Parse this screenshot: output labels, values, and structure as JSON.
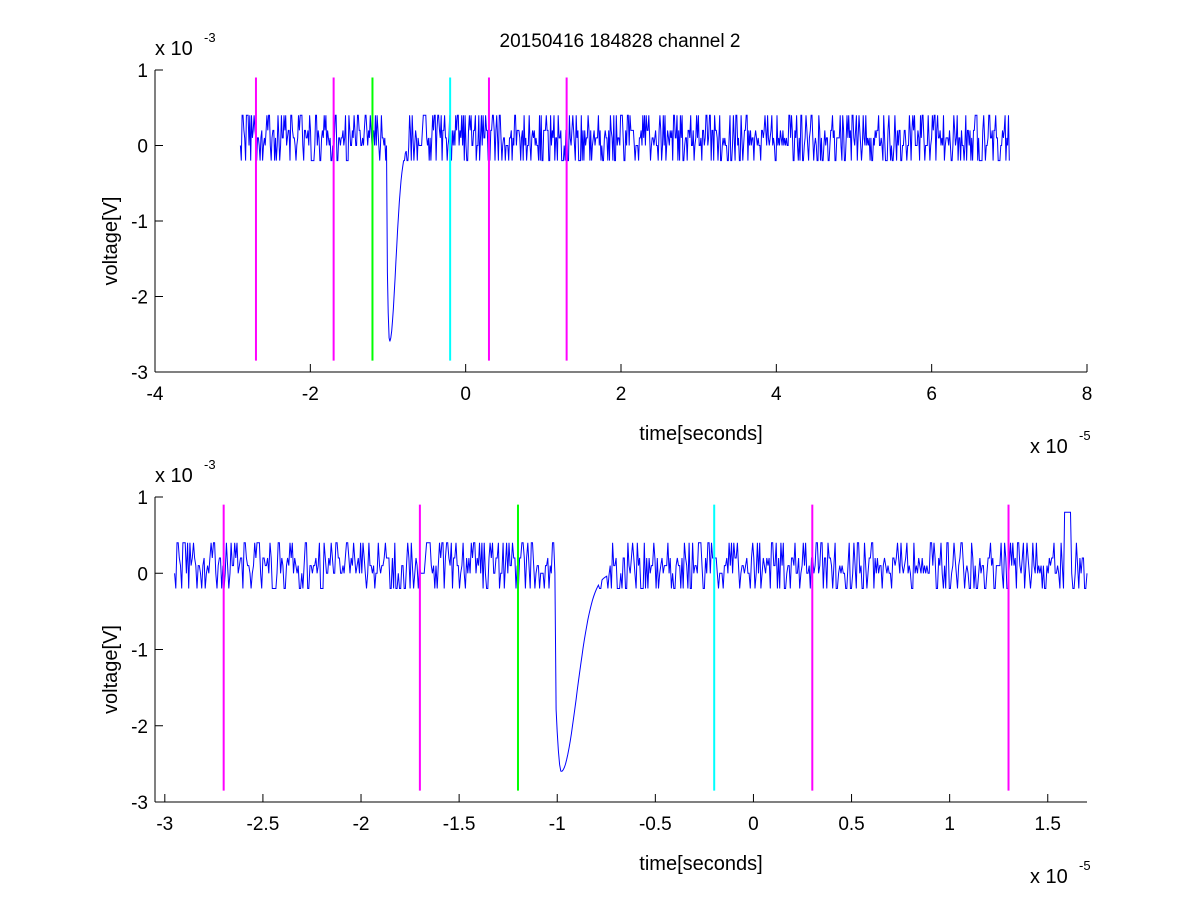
{
  "title": "20150416 184828 channel 2",
  "chart_data": [
    {
      "type": "line",
      "title": "20150416 184828 channel 2",
      "xlabel": "time[seconds]",
      "ylabel": "voltage[V]",
      "x_exponent_label": "x 10",
      "x_exponent": "-5",
      "y_exponent_label": "x 10",
      "y_exponent": "-3",
      "x_scale": 1e-05,
      "y_scale": 0.001,
      "xlim": [
        -4,
        8
      ],
      "ylim": [
        -3,
        1
      ],
      "xticks": [
        -4,
        -2,
        0,
        2,
        4,
        6,
        8
      ],
      "xtick_labels": [
        "-4",
        "-2",
        "0",
        "2",
        "4",
        "6",
        "8"
      ],
      "yticks": [
        -3,
        -2,
        -1,
        0,
        1
      ],
      "ytick_labels": [
        "-3",
        "-2",
        "-1",
        "0",
        "1"
      ],
      "grid": false,
      "series": [
        {
          "color": "#0000ff",
          "x_start": -2.9,
          "x_end": 7.0,
          "baseline": 0.1,
          "noise_levels": [
            0,
            0.2,
            0.4,
            -0.2,
            0.1
          ],
          "spike": {
            "x": -0.98,
            "min": -2.6
          }
        }
      ],
      "vertical_markers": [
        {
          "x": -2.7,
          "color": "#ff00ff",
          "y_range": [
            -2.85,
            0.9
          ]
        },
        {
          "x": -1.7,
          "color": "#ff00ff",
          "y_range": [
            -2.85,
            0.9
          ]
        },
        {
          "x": -1.2,
          "color": "#00ff00",
          "y_range": [
            -2.85,
            0.9
          ]
        },
        {
          "x": -0.2,
          "color": "#00ffff",
          "y_range": [
            -2.85,
            0.9
          ]
        },
        {
          "x": 0.3,
          "color": "#ff00ff",
          "y_range": [
            -2.85,
            0.9
          ]
        },
        {
          "x": 1.3,
          "color": "#ff00ff",
          "y_range": [
            -2.85,
            0.9
          ]
        }
      ]
    },
    {
      "type": "line",
      "xlabel": "time[seconds]",
      "ylabel": "voltage[V]",
      "x_exponent_label": "x 10",
      "x_exponent": "-5",
      "y_exponent_label": "x 10",
      "y_exponent": "-3",
      "x_scale": 1e-05,
      "y_scale": 0.001,
      "xlim": [
        -3.05,
        1.7
      ],
      "ylim": [
        -3,
        1
      ],
      "xticks": [
        -3,
        -2.5,
        -2,
        -1.5,
        -1,
        -0.5,
        0,
        0.5,
        1,
        1.5
      ],
      "xtick_labels": [
        "-3",
        "-2.5",
        "-2",
        "-1.5",
        "-1",
        "-0.5",
        "0",
        "0.5",
        "1",
        "1.5"
      ],
      "yticks": [
        -3,
        -2,
        -1,
        0,
        1
      ],
      "ytick_labels": [
        "-3",
        "-2",
        "-1",
        "0",
        "1"
      ],
      "grid": false,
      "series": [
        {
          "color": "#0000ff",
          "x_start": -2.95,
          "x_end": 1.7,
          "baseline": 0.1,
          "noise_levels": [
            0,
            0.2,
            0.4,
            -0.2,
            0.1
          ],
          "spike": {
            "x": -0.98,
            "min": -2.6
          },
          "late_peak": {
            "x": 1.6,
            "value": 0.8
          }
        }
      ],
      "vertical_markers": [
        {
          "x": -2.7,
          "color": "#ff00ff",
          "y_range": [
            -2.85,
            0.9
          ]
        },
        {
          "x": -1.7,
          "color": "#ff00ff",
          "y_range": [
            -2.85,
            0.9
          ]
        },
        {
          "x": -1.2,
          "color": "#00ff00",
          "y_range": [
            -2.85,
            0.9
          ]
        },
        {
          "x": -0.2,
          "color": "#00ffff",
          "y_range": [
            -2.85,
            0.9
          ]
        },
        {
          "x": 0.3,
          "color": "#ff00ff",
          "y_range": [
            -2.85,
            0.9
          ]
        },
        {
          "x": 1.3,
          "color": "#ff00ff",
          "y_range": [
            -2.85,
            0.9
          ]
        }
      ]
    }
  ]
}
